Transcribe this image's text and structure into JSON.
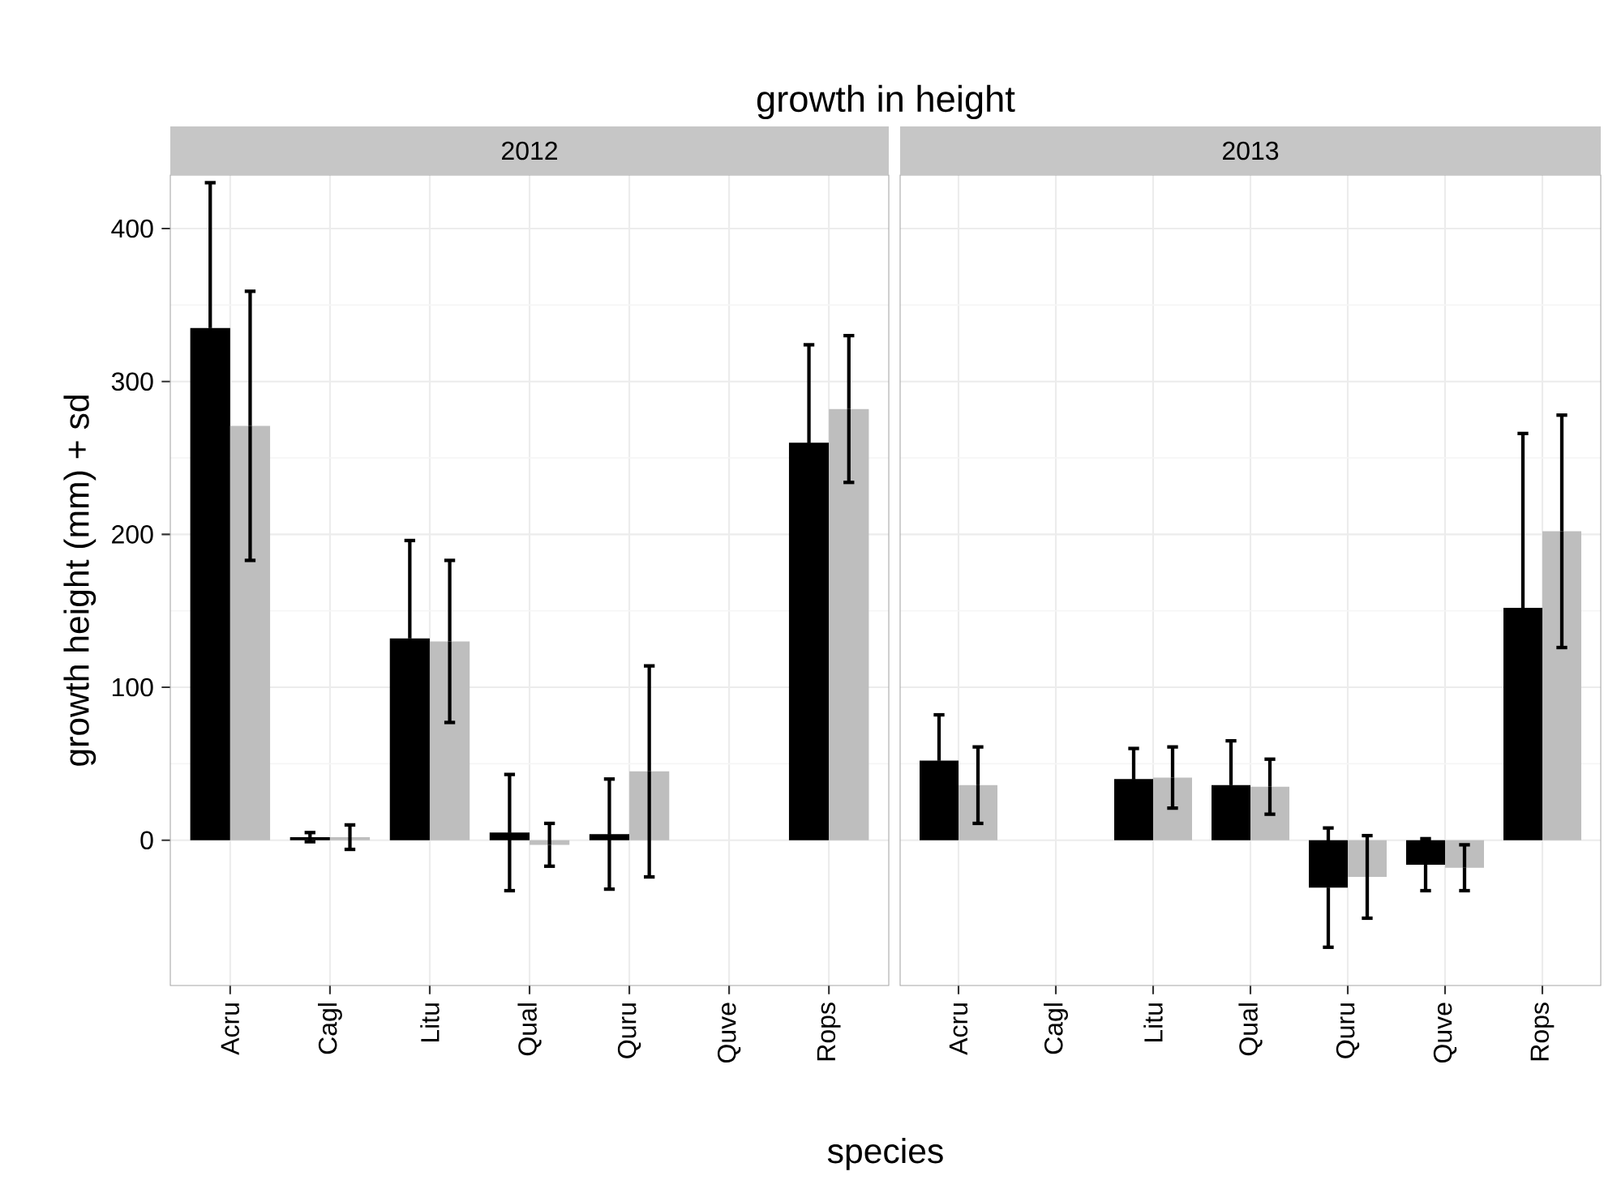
{
  "chart_data": [
    {
      "type": "bar",
      "title": "growth in height",
      "subtitle": "2012",
      "xlabel": "species",
      "ylabel": "growth height (mm) + sd",
      "categories": [
        "Acru",
        "Cagl",
        "Litu",
        "Qual",
        "Quru",
        "Quve",
        "Rops"
      ],
      "series": [
        {
          "color": "#000000",
          "values": [
            335,
            2,
            132,
            5,
            4,
            null,
            260
          ],
          "errors": [
            95,
            3,
            64,
            38,
            36,
            null,
            64
          ]
        },
        {
          "color": "#bebebe",
          "values": [
            271,
            2,
            130,
            -3,
            45,
            null,
            282
          ],
          "errors": [
            88,
            8,
            53,
            14,
            69,
            null,
            48
          ]
        }
      ],
      "ylim": [
        -95,
        435
      ],
      "yticks": [
        0,
        100,
        200,
        300,
        400
      ],
      "grid": true
    },
    {
      "type": "bar",
      "subtitle": "2013",
      "categories": [
        "Acru",
        "Cagl",
        "Litu",
        "Qual",
        "Quru",
        "Quve",
        "Rops"
      ],
      "series": [
        {
          "color": "#000000",
          "values": [
            52,
            null,
            40,
            36,
            -31,
            -16,
            152
          ],
          "errors": [
            30,
            null,
            20,
            29,
            39,
            17,
            114
          ]
        },
        {
          "color": "#bebebe",
          "values": [
            36,
            null,
            41,
            35,
            -24,
            -18,
            202
          ],
          "errors": [
            25,
            null,
            20,
            18,
            27,
            15,
            76
          ]
        }
      ],
      "ylim": [
        -95,
        435
      ],
      "yticks": [
        0,
        100,
        200,
        300,
        400
      ],
      "grid": true,
      "tick_labels": "x"
    }
  ]
}
